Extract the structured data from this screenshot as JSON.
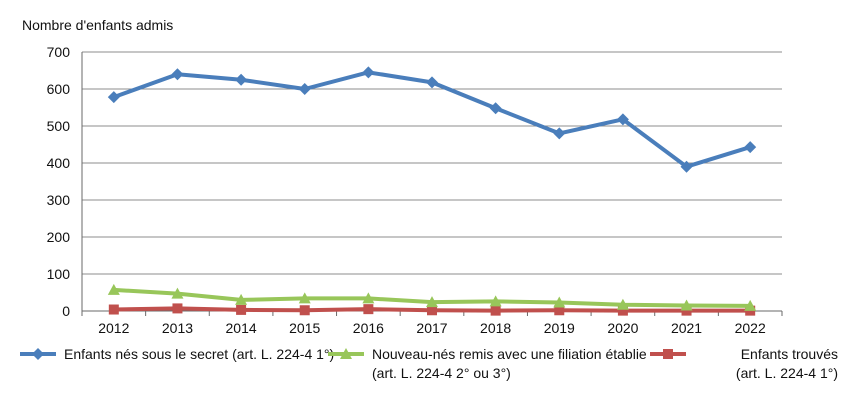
{
  "chart_data": {
    "type": "line",
    "ylabel": "Nombre d'enfants admis",
    "ylim": [
      0,
      700
    ],
    "yticks": [
      0,
      100,
      200,
      300,
      400,
      500,
      600,
      700
    ],
    "x": [
      "2012",
      "2013",
      "2014",
      "2015",
      "2016",
      "2017",
      "2018",
      "2019",
      "2020",
      "2021",
      "2022"
    ],
    "grid": true,
    "legend_position": "bottom",
    "series": [
      {
        "name": "Enfants nés sous le secret (art. L. 224-4 1°)",
        "legend_lines": [
          "Enfants nés sous le secret (art. L. 224-4 1°)"
        ],
        "color": "#4a7ebb",
        "marker": "diamond",
        "values": [
          578,
          640,
          625,
          600,
          645,
          618,
          548,
          480,
          518,
          390,
          443
        ]
      },
      {
        "name": "Nouveau-nés remis avec une filiation établie (art. L. 224-4 2° ou 3°)",
        "legend_lines": [
          "Nouveau-nés remis avec une filiation établie",
          "(art. L. 224-4 2° ou 3°)"
        ],
        "color": "#98c65a",
        "marker": "triangle",
        "values": [
          57,
          47,
          30,
          34,
          34,
          24,
          26,
          23,
          17,
          15,
          14
        ]
      },
      {
        "name": "Enfants trouvés (art. L. 224-4 1°)",
        "legend_lines": [
          "Enfants trouvés",
          "(art. L. 224-4 1°)"
        ],
        "color": "#c0504d",
        "marker": "square",
        "values": [
          4,
          7,
          3,
          2,
          5,
          2,
          1,
          2,
          1,
          1,
          1
        ]
      }
    ]
  }
}
